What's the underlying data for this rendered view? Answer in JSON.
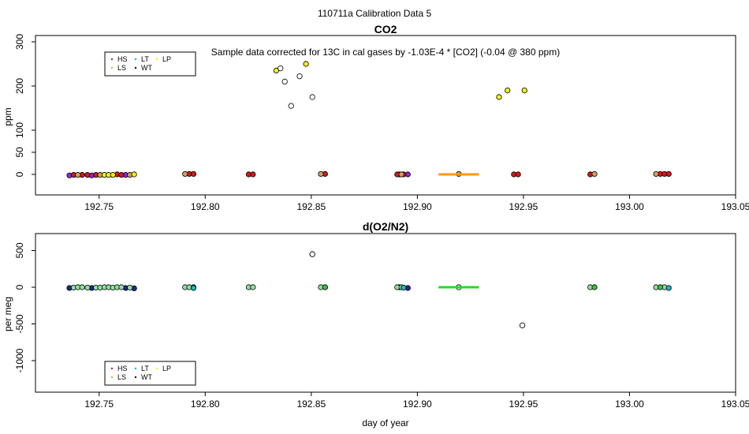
{
  "page_title": "110711a   Calibration Data 5",
  "xlabel": "day of year",
  "x_ticks": [
    192.75,
    192.8,
    192.85,
    192.9,
    192.95,
    193.0,
    193.05
  ],
  "legend_colors": {
    "HS": "#d11a1a",
    "LS": "#9acd32",
    "LT": "#18b8c8",
    "WT": "#111111",
    "LP": "#f0f01a"
  },
  "chart_data": [
    {
      "type": "scatter",
      "title": "CO2",
      "annotation": "Sample data corrected for 13C in cal gases by -1.03E-4 * [CO2] (-0.04 @ 380 ppm)",
      "ylabel": "ppm",
      "y_scale": "compressed below 100",
      "xlim": [
        192.72,
        193.05
      ],
      "ylim": [
        -45,
        315
      ],
      "y_ticks": [
        0,
        50,
        100,
        200,
        300
      ],
      "grid": false,
      "legend": {
        "placement": "top-left",
        "entries": [
          "HS",
          "LT",
          "LP",
          "LS",
          "WT"
        ]
      },
      "series": [
        {
          "color": "#8a2be2",
          "x": [
            192.736,
            192.7465,
            192.7625,
            192.8915,
            192.8955
          ],
          "y": [
            -2,
            -2,
            -1,
            0,
            0
          ]
        },
        {
          "color": "#d11a1a",
          "x": [
            192.738,
            192.742,
            192.7445,
            192.7485,
            192.7585,
            192.7605,
            192.7925,
            192.7945,
            192.8205,
            192.8225,
            192.8565,
            192.8905,
            192.8935,
            192.9455,
            192.9475,
            192.9815,
            193.0145,
            193.0165,
            193.0185
          ],
          "y": [
            -1,
            -1,
            -1,
            -1,
            0,
            -1,
            1,
            1,
            0,
            0,
            1,
            0,
            0,
            0,
            0,
            0,
            1,
            1,
            1
          ]
        },
        {
          "color": "#d0a060",
          "x": [
            192.74,
            192.7505,
            192.7645,
            192.7905,
            192.8545,
            192.8925,
            192.9195,
            192.9835,
            193.0125
          ],
          "y": [
            -1,
            -1,
            -1,
            1,
            1,
            0,
            1,
            1,
            1
          ]
        },
        {
          "color": "#f0f01a",
          "x": [
            192.7525,
            192.7545,
            192.7565,
            192.7665,
            192.8335,
            192.8475,
            192.9385,
            192.9425,
            192.9505
          ],
          "y": [
            -1,
            -1,
            -1,
            0,
            235,
            250,
            175,
            190,
            190
          ]
        },
        {
          "color": "#ffffff",
          "x": [
            192.8355,
            192.8375,
            192.8405,
            192.8445,
            192.8505
          ],
          "y": [
            240,
            210,
            155,
            222,
            175
          ]
        },
        {
          "color": "#ff9900",
          "x": [
            192.91,
            192.929
          ],
          "y": [
            0,
            0
          ]
        }
      ]
    },
    {
      "type": "scatter",
      "title": "d(O2/N2)",
      "ylabel": "per meg",
      "xlim": [
        192.72,
        193.05
      ],
      "ylim": [
        -1400,
        680
      ],
      "y_ticks": [
        500,
        0,
        -500,
        -1000
      ],
      "grid": false,
      "legend": {
        "placement": "bottom-left",
        "entries": [
          "HS",
          "LT",
          "LP",
          "LS",
          "WT"
        ]
      },
      "series": [
        {
          "color": "#1c2a8a",
          "x": [
            192.736,
            192.7465,
            192.7625,
            192.7665,
            192.8505,
            192.8565,
            192.8915,
            192.8955,
            192.9495
          ],
          "y": [
            -10,
            -10,
            -10,
            -15,
            450,
            0,
            0,
            -10,
            -520
          ]
        },
        {
          "color": "#90e0a0",
          "x": [
            192.738,
            192.74,
            192.742,
            192.7445,
            192.7485,
            192.7505,
            192.7525,
            192.7545,
            192.7565,
            192.7585,
            192.7605,
            192.7645,
            192.7905,
            192.7925,
            192.8205,
            192.8225,
            192.8545,
            192.8905,
            192.8925,
            192.9195,
            192.9815,
            193.0125,
            193.0165
          ],
          "y": [
            -5,
            0,
            0,
            -5,
            -5,
            -5,
            0,
            0,
            -5,
            0,
            0,
            -5,
            0,
            0,
            0,
            0,
            0,
            0,
            0,
            0,
            0,
            0,
            0
          ]
        },
        {
          "color": "#40c040",
          "x": [
            192.7945,
            192.8565,
            192.9835,
            193.0145
          ],
          "y": [
            0,
            0,
            0,
            0
          ]
        },
        {
          "color": "#18b8c8",
          "x": [
            192.7945,
            192.8935,
            193.0185
          ],
          "y": [
            -10,
            -5,
            -10
          ]
        },
        {
          "color": "#ffffff",
          "x": [
            192.8505,
            192.9195,
            192.9495
          ],
          "y": [
            450,
            0,
            -520
          ]
        },
        {
          "color": "#22dd22",
          "x": [
            192.91,
            192.929
          ],
          "y": [
            0,
            0
          ]
        }
      ]
    }
  ]
}
